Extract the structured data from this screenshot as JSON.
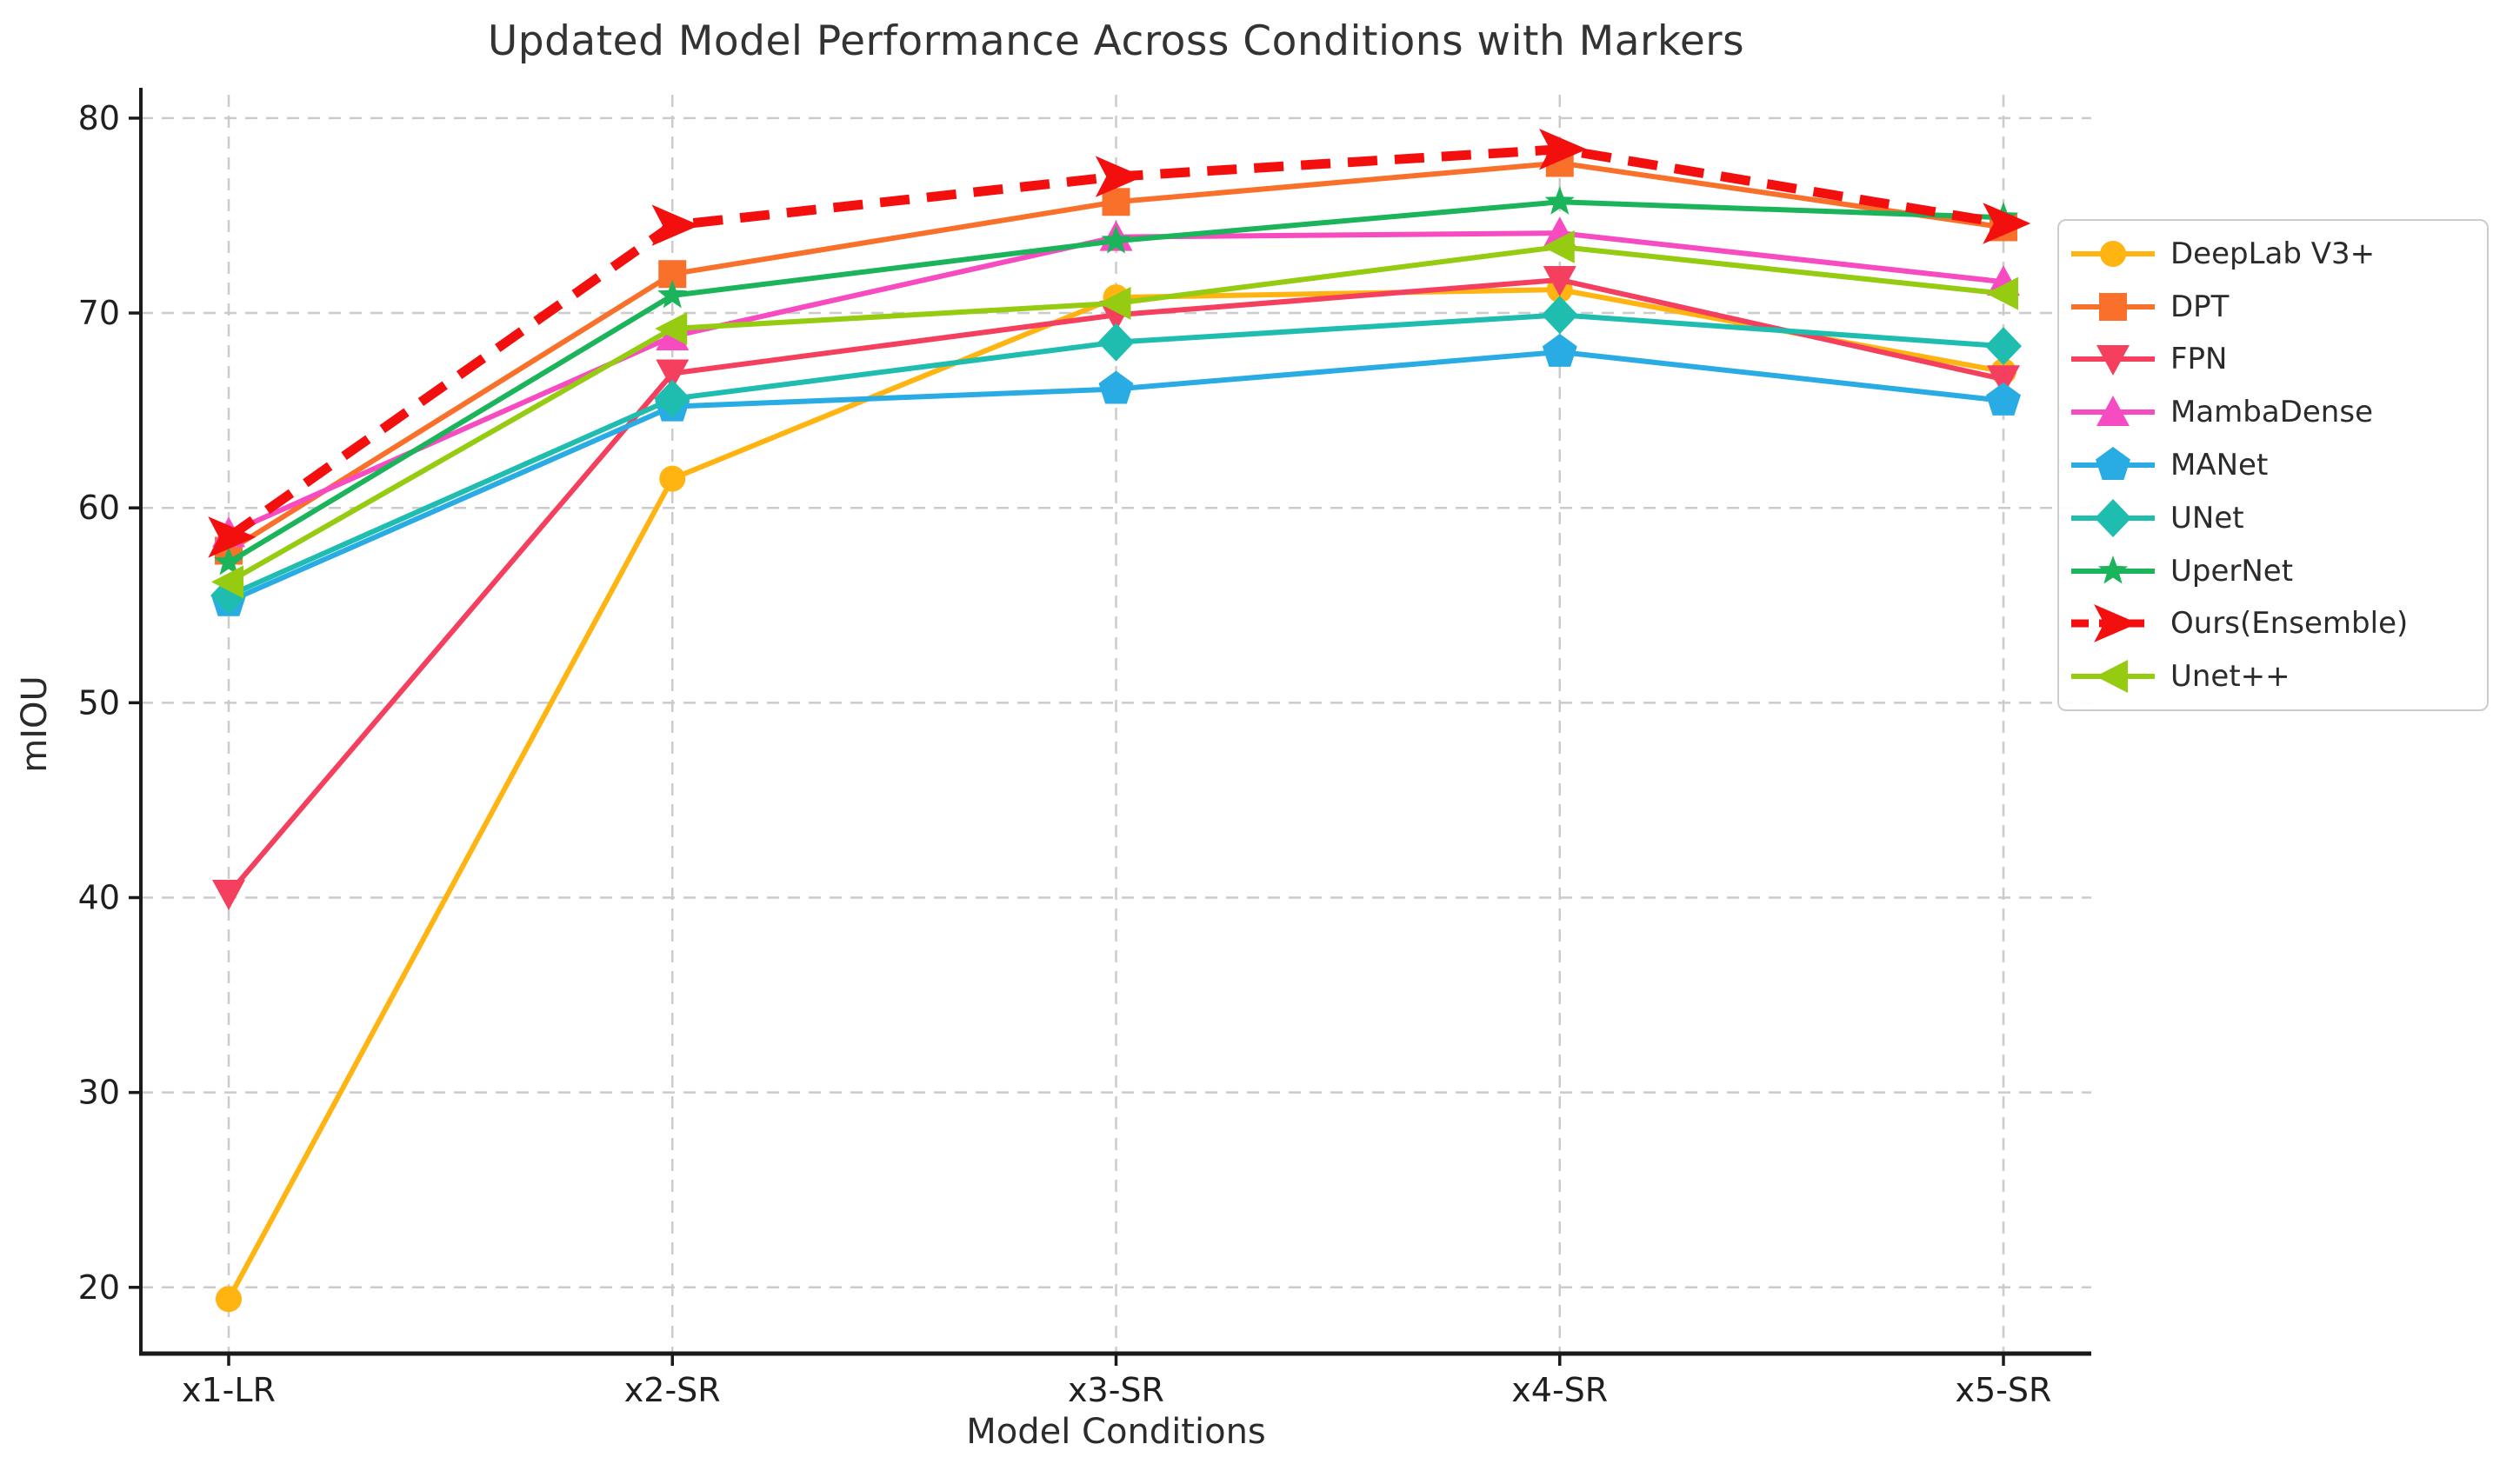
{
  "chart_data": {
    "type": "line",
    "title": "Updated Model Performance Across Conditions with Markers",
    "xlabel": "Model Conditions",
    "ylabel": "mIOU",
    "categories": [
      "x1-LR",
      "x2-SR",
      "x3-SR",
      "x4-SR",
      "x5-SR"
    ],
    "yticks": [
      20,
      30,
      40,
      50,
      60,
      70,
      80
    ],
    "ylim": [
      16.6,
      81.2
    ],
    "grid": "dashed-both-axes",
    "legend_position": "outside-right",
    "series": [
      {
        "name": "DeepLab V3+",
        "color": "#FFB412",
        "marker": "circle",
        "line": "solid",
        "values": [
          19.4,
          61.5,
          70.8,
          71.2,
          67.0
        ]
      },
      {
        "name": "DPT",
        "color": "#F9702B",
        "marker": "square",
        "line": "solid",
        "values": [
          57.8,
          72.0,
          75.7,
          77.7,
          74.4
        ]
      },
      {
        "name": "FPN",
        "color": "#F43F5E",
        "marker": "triangle-down",
        "line": "solid",
        "values": [
          40.2,
          66.9,
          69.9,
          71.7,
          66.6
        ]
      },
      {
        "name": "MambaDense",
        "color": "#F74BC1",
        "marker": "triangle-up",
        "line": "solid",
        "values": [
          58.7,
          68.8,
          73.9,
          74.1,
          71.6
        ]
      },
      {
        "name": "MANet",
        "color": "#29ACE3",
        "marker": "pentagon",
        "line": "solid",
        "values": [
          55.2,
          65.2,
          66.1,
          68.0,
          65.5
        ]
      },
      {
        "name": "UNet",
        "color": "#1FBDAF",
        "marker": "diamond",
        "line": "solid",
        "values": [
          55.5,
          65.6,
          68.5,
          69.9,
          68.3
        ]
      },
      {
        "name": "UperNet",
        "color": "#1BB45A",
        "marker": "star",
        "line": "solid",
        "values": [
          57.2,
          70.9,
          73.7,
          75.7,
          74.9
        ]
      },
      {
        "name": "Ours(Ensemble)",
        "color": "#F40F0F",
        "marker": "arrow-right",
        "line": "dashed",
        "values": [
          58.5,
          74.5,
          77.0,
          78.4,
          74.6
        ]
      },
      {
        "name": "Unet++",
        "color": "#95CB11",
        "marker": "triangle-left",
        "line": "solid",
        "values": [
          56.2,
          69.2,
          70.5,
          73.4,
          71.0
        ]
      }
    ]
  }
}
